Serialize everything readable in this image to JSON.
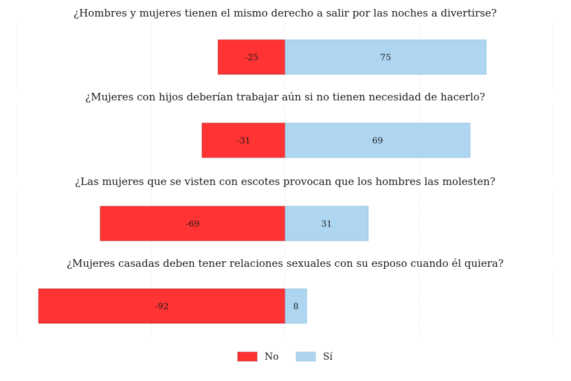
{
  "chart_data": {
    "type": "bar",
    "orientation": "horizontal",
    "stacking": "diverging",
    "xlim": [
      -100,
      100
    ],
    "grid": "vertical dotted",
    "legend_position": "bottom-center",
    "colors": {
      "No": "#ff3333",
      "Si": "#aed6f1"
    },
    "legend": [
      {
        "key": "No",
        "label": "No"
      },
      {
        "key": "Si",
        "label": "Sí"
      }
    ],
    "panels": [
      {
        "question": "¿Hombres y mujeres tienen el mismo derecho a salir por las noches a divertirse?",
        "no": -25,
        "si": 75,
        "no_label": "-25",
        "si_label": "75"
      },
      {
        "question": "¿Mujeres con hijos deberían trabajar aún si no tienen necesidad de hacerlo?",
        "no": -31,
        "si": 69,
        "no_label": "-31",
        "si_label": "69"
      },
      {
        "question": "¿Las mujeres que se visten con escotes provocan que los hombres las molesten?",
        "no": -69,
        "si": 31,
        "no_label": "-69",
        "si_label": "31"
      },
      {
        "question": "¿Mujeres casadas deben tener relaciones sexuales con su esposo cuando él quiera?",
        "no": -92,
        "si": 8,
        "no_label": "-92",
        "si_label": "8"
      }
    ]
  }
}
